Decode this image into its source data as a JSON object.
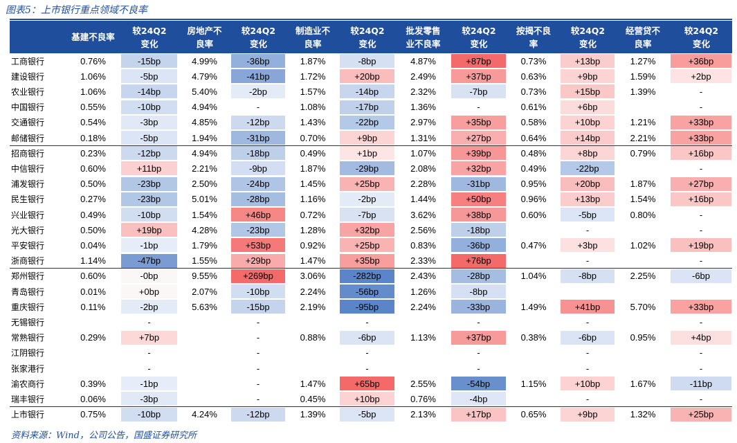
{
  "title": "图表5：上市银行重点领域不良率",
  "source": "资料来源：Wind，公司公告，国盛证券研究所",
  "colors": {
    "header_bg": "#1f4e9c",
    "positive_strong": "#f46a6a",
    "positive_light": "#fde3e3",
    "negative_strong": "#5b85c8",
    "negative_light": "#e3ebf7"
  },
  "columns": [
    "基建不良率",
    "较24Q2\n变化",
    "房地产不\n良率",
    "较24Q2\n变化",
    "制造业不\n良率",
    "较24Q2\n变化",
    "批发零售\n业不良率",
    "较24Q2\n变化",
    "按揭不良\n率",
    "较24Q2\n变化",
    "经营贷不\n良率",
    "较24Q2\n变化"
  ],
  "rows": [
    {
      "bank": "工商银行",
      "values": [
        "0.76%",
        "-15bp",
        "4.99%",
        "-36bp",
        "1.87%",
        "-8bp",
        "4.87%",
        "+87bp",
        "0.73%",
        "+13bp",
        "1.27%",
        "+36bp"
      ]
    },
    {
      "bank": "建设银行",
      "values": [
        "1.06%",
        "-5bp",
        "4.79%",
        "-41bp",
        "1.72%",
        "+20bp",
        "2.49%",
        "+37bp",
        "0.63%",
        "+9bp",
        "1.59%",
        "+2bp"
      ]
    },
    {
      "bank": "农业银行",
      "values": [
        "1.06%",
        "-14bp",
        "5.40%",
        "-2bp",
        "1.57%",
        "-14bp",
        "2.32%",
        "-7bp",
        "0.73%",
        "+15bp",
        "1.39%",
        "-"
      ]
    },
    {
      "bank": "中国银行",
      "values": [
        "0.55%",
        "-10bp",
        "4.94%",
        "-",
        "1.08%",
        "-17bp",
        "1.36%",
        "-",
        "0.61%",
        "+6bp",
        "",
        "-"
      ]
    },
    {
      "bank": "交通银行",
      "values": [
        "0.54%",
        "-3bp",
        "4.85%",
        "-12bp",
        "1.43%",
        "-22bp",
        "2.97%",
        "+35bp",
        "0.58%",
        "+10bp",
        "1.21%",
        "+33bp"
      ]
    },
    {
      "bank": "邮储银行",
      "values": [
        "0.18%",
        "-5bp",
        "1.94%",
        "-31bp",
        "0.70%",
        "+9bp",
        "1.31%",
        "+27bp",
        "0.64%",
        "+14bp",
        "2.21%",
        "+33bp"
      ]
    },
    {
      "bank": "招商银行",
      "values": [
        "0.23%",
        "-12bp",
        "4.94%",
        "-18bp",
        "0.49%",
        "+1bp",
        "1.07%",
        "+39bp",
        "0.48%",
        "+8bp",
        "0.79%",
        "+16bp"
      ]
    },
    {
      "bank": "中信银行",
      "values": [
        "0.60%",
        "+11bp",
        "2.21%",
        "-9bp",
        "1.87%",
        "-29bp",
        "2.08%",
        "+32bp",
        "0.49%",
        "-22bp",
        "",
        "-"
      ]
    },
    {
      "bank": "浦发银行",
      "values": [
        "0.50%",
        "-23bp",
        "2.50%",
        "-24bp",
        "1.45%",
        "+25bp",
        "2.28%",
        "-31bp",
        "0.95%",
        "+20bp",
        "1.87%",
        "+27bp"
      ]
    },
    {
      "bank": "民生银行",
      "values": [
        "0.27%",
        "-23bp",
        "5.01%",
        "-28bp",
        "1.16%",
        "-2bp",
        "1.44%",
        "+50bp",
        "0.96%",
        "+13bp",
        "1.54%",
        "+16bp"
      ]
    },
    {
      "bank": "兴业银行",
      "values": [
        "0.49%",
        "-10bp",
        "1.54%",
        "+46bp",
        "0.72%",
        "-7bp",
        "3.62%",
        "+38bp",
        "0.60%",
        "-5bp",
        "0.80%",
        "-"
      ]
    },
    {
      "bank": "光大银行",
      "values": [
        "0.50%",
        "+19bp",
        "4.28%",
        "-23bp",
        "1.28%",
        "+32bp",
        "2.56%",
        "-18bp",
        "",
        "-",
        "",
        "-"
      ]
    },
    {
      "bank": "平安银行",
      "values": [
        "0.04%",
        "-1bp",
        "1.79%",
        "+53bp",
        "0.92%",
        "+25bp",
        "0.83%",
        "-36bp",
        "0.47%",
        "+3bp",
        "1.02%",
        "+19bp"
      ]
    },
    {
      "bank": "浙商银行",
      "values": [
        "1.14%",
        "-47bp",
        "1.55%",
        "+29bp",
        "1.47%",
        "+35bp",
        "2.33%",
        "+76bp",
        "",
        "-",
        "",
        "-"
      ]
    },
    {
      "bank": "郑州银行",
      "values": [
        "0.60%",
        "-0bp",
        "9.55%",
        "+269bp",
        "3.06%",
        "-282bp",
        "2.43%",
        "-28bp",
        "1.04%",
        "-8bp",
        "2.25%",
        "-6bp"
      ]
    },
    {
      "bank": "青岛银行",
      "values": [
        "0.01%",
        "+0bp",
        "2.07%",
        "-10bp",
        "2.24%",
        "-56bp",
        "1.26%",
        "-8bp",
        "",
        "",
        "",
        ""
      ]
    },
    {
      "bank": "重庆银行",
      "values": [
        "0.11%",
        "-2bp",
        "5.63%",
        "-15bp",
        "2.19%",
        "-95bp",
        "2.24%",
        "-33bp",
        "1.49%",
        "+41bp",
        "5.70%",
        "+33bp"
      ]
    },
    {
      "bank": "无锡银行",
      "values": [
        "",
        "-",
        "",
        "-",
        "",
        "-",
        "",
        "-",
        "",
        "-",
        "",
        "-"
      ]
    },
    {
      "bank": "常熟银行",
      "values": [
        "0.29%",
        "+7bp",
        "",
        "-",
        "0.88%",
        "-6bp",
        "1.13%",
        "+37bp",
        "0.38%",
        "-6bp",
        "0.95%",
        "+4bp"
      ]
    },
    {
      "bank": "江阴银行",
      "values": [
        "",
        "-",
        "",
        "-",
        "",
        "-",
        "",
        "-",
        "",
        "-",
        "",
        "-"
      ]
    },
    {
      "bank": "张家港行",
      "values": [
        "",
        "-",
        "",
        "-",
        "",
        "-",
        "",
        "-",
        "",
        "-",
        "",
        "-"
      ]
    },
    {
      "bank": "渝农商行",
      "values": [
        "0.39%",
        "-1bp",
        "",
        "-",
        "1.47%",
        "+65bp",
        "2.55%",
        "-54bp",
        "1.15%",
        "+10bp",
        "1.67%",
        "-11bp"
      ]
    },
    {
      "bank": "瑞丰银行",
      "values": [
        "0.06%",
        "-3bp",
        "",
        "-",
        "0.45%",
        "+10bp",
        "0.76%",
        "-4bp",
        "",
        "-",
        "",
        "-"
      ]
    },
    {
      "bank": "上市银行",
      "values": [
        "0.75%",
        "-10bp",
        "4.24%",
        "-12bp",
        "1.39%",
        "-5bp",
        "2.13%",
        "+17bp",
        "0.65%",
        "+9bp",
        "1.32%",
        "+25bp"
      ]
    }
  ]
}
